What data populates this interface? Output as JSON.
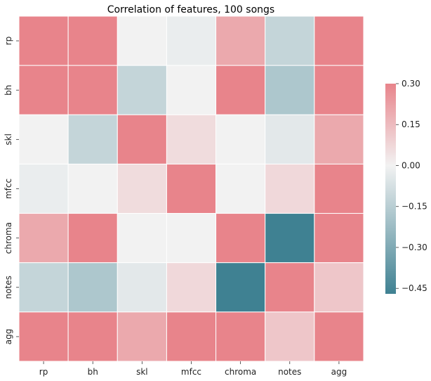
{
  "chart_data": {
    "type": "heatmap",
    "title": "Correlation of features, 100 songs",
    "xlabel": "",
    "ylabel": "",
    "x_categories": [
      "rp",
      "bh",
      "skl",
      "mfcc",
      "chroma",
      "notes",
      "agg"
    ],
    "y_categories": [
      "rp",
      "bh",
      "skl",
      "mfcc",
      "chroma",
      "notes",
      "agg"
    ],
    "values": [
      [
        0.3,
        0.3,
        0.0,
        -0.02,
        0.2,
        -0.12,
        0.3
      ],
      [
        0.3,
        0.3,
        -0.12,
        0.0,
        0.3,
        -0.18,
        0.3
      ],
      [
        0.0,
        -0.12,
        0.3,
        0.06,
        0.0,
        -0.04,
        0.2
      ],
      [
        -0.02,
        0.0,
        0.06,
        0.3,
        0.0,
        0.07,
        0.3
      ],
      [
        0.2,
        0.3,
        0.0,
        0.0,
        0.3,
        -0.47,
        0.3
      ],
      [
        -0.12,
        -0.18,
        -0.04,
        0.07,
        -0.47,
        0.3,
        0.12
      ],
      [
        0.3,
        0.3,
        0.2,
        0.3,
        0.3,
        0.12,
        0.3
      ]
    ],
    "colorbar": {
      "vmin": -0.47,
      "vmax": 0.3,
      "ticks": [
        0.3,
        0.15,
        0.0,
        -0.15,
        -0.3,
        -0.45
      ],
      "tick_labels": [
        "0.30",
        "0.15",
        "0.00",
        "−0.15",
        "−0.30",
        "−0.45"
      ],
      "color_low": "#3f8192",
      "color_mid": "#f2f2f2",
      "color_high": "#e8848b"
    },
    "grid": true,
    "legend": "colorbar-right"
  }
}
